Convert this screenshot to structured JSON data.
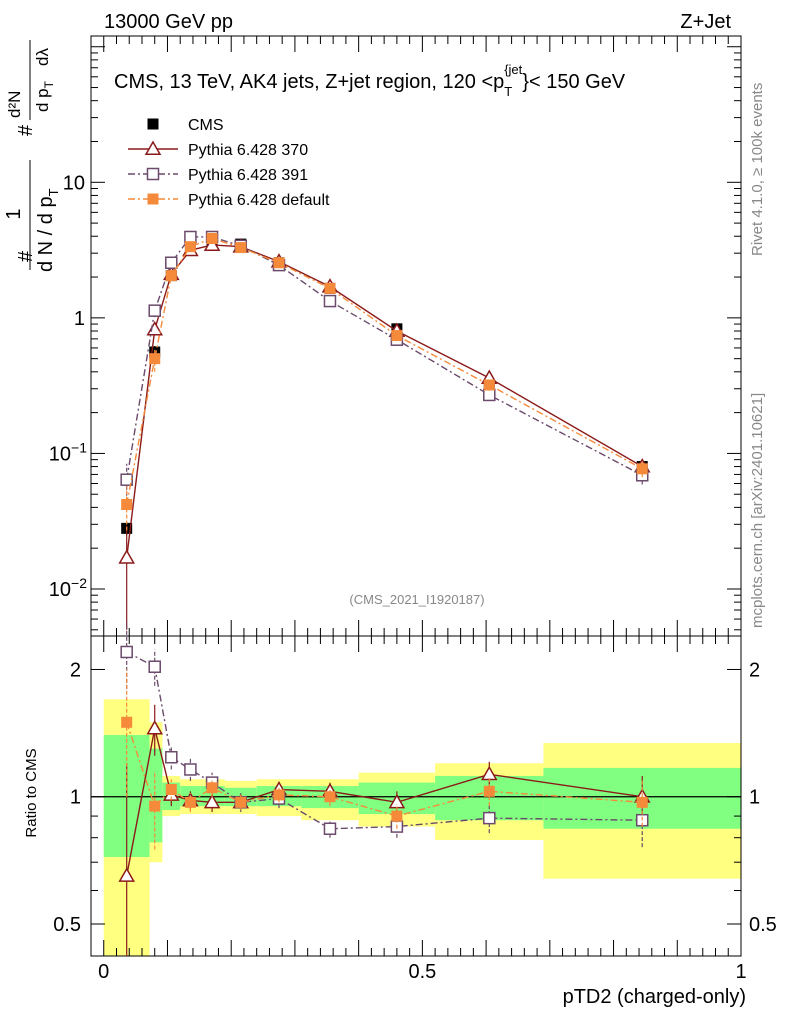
{
  "header": {
    "left": "13000 GeV pp",
    "right": "Z+Jet"
  },
  "side_labels": {
    "rivet": "Rivet 4.1.0, ≥ 100k events",
    "mcplots": "mcplots.cern.ch [arXiv:2401.10621]"
  },
  "chart_data": [
    {
      "type": "scatter",
      "panel": "main",
      "title": "CMS, 13 TeV, AK4 jets, Z+jet region, 120 <p_T^{jet}< 150 GeV",
      "title_main": "CMS, 13 TeV, AK4 jets, Z+jet region, 120 <p",
      "title_sub": "T",
      "title_sup": "{jet",
      "title_close": "}",
      "title_tail": "< 150 GeV",
      "ylabel": "1/N dN/dλ",
      "ylabel_parts": {
        "num": "1",
        "den": "d N / d p",
        "num2": "d²N",
        "den2": "d p",
        "dlam": "dλ",
        "sub": "T",
        "hash": "#"
      },
      "yscale": "log",
      "ylim": [
        0.0045,
        120
      ],
      "xlim": [
        -0.02,
        1.0
      ],
      "yticks": [
        {
          "v": 0.01,
          "base": "10",
          "exp": "−2"
        },
        {
          "v": 0.1,
          "base": "10",
          "exp": "−1"
        },
        {
          "v": 1,
          "base": "1",
          "exp": ""
        },
        {
          "v": 10,
          "base": "10",
          "exp": ""
        }
      ],
      "watermark": "(CMS_2021_I1920187)",
      "legend": [
        {
          "name": "CMS",
          "key": "cms"
        },
        {
          "name": "Pythia 6.428 370",
          "key": "p370"
        },
        {
          "name": "Pythia 6.428 391",
          "key": "p391"
        },
        {
          "name": "Pythia 6.428 default",
          "key": "pdef"
        }
      ],
      "x": [
        0.036,
        0.08,
        0.106,
        0.136,
        0.17,
        0.215,
        0.275,
        0.355,
        0.46,
        0.605,
        0.845
      ],
      "series": [
        {
          "name": "CMS",
          "key": "cms",
          "color": "#000000",
          "marker": "filled-square",
          "values": [
            0.028,
            0.56,
            2.05,
            3.4,
            3.7,
            3.5,
            2.55,
            1.65,
            0.83,
            0.32,
            0.08
          ],
          "errors": [
            0.003,
            0.06,
            0.1,
            0.12,
            0.12,
            0.1,
            0.08,
            0.06,
            0.04,
            0.02,
            0.008
          ]
        },
        {
          "name": "Pythia 6.428 370",
          "key": "p370",
          "color": "#8b1a1a",
          "marker": "open-triangle",
          "line": "solid",
          "values": [
            0.017,
            0.82,
            2.1,
            3.15,
            3.45,
            3.35,
            2.6,
            1.7,
            0.8,
            0.36,
            0.08
          ],
          "errors": [
            0.012,
            0.08,
            0.12,
            0.15,
            0.15,
            0.15,
            0.12,
            0.08,
            0.05,
            0.03,
            0.01
          ]
        },
        {
          "name": "Pythia 6.428 391",
          "key": "p391",
          "color": "#6b4a6b",
          "marker": "open-square",
          "line": "dashdot",
          "values": [
            0.064,
            1.13,
            2.55,
            3.95,
            3.95,
            3.4,
            2.45,
            1.33,
            0.69,
            0.27,
            0.069
          ],
          "errors": [
            0.02,
            0.12,
            0.15,
            0.2,
            0.2,
            0.15,
            0.12,
            0.08,
            0.05,
            0.025,
            0.01
          ]
        },
        {
          "name": "Pythia 6.428 default",
          "key": "pdef",
          "color": "#f58a3a",
          "marker": "filled-square",
          "line": "dashdot",
          "values": [
            0.042,
            0.5,
            2.05,
            3.35,
            3.85,
            3.3,
            2.55,
            1.65,
            0.74,
            0.32,
            0.077
          ],
          "errors": [
            0.015,
            0.1,
            0.12,
            0.15,
            0.15,
            0.12,
            0.1,
            0.08,
            0.05,
            0.03,
            0.01
          ]
        }
      ]
    },
    {
      "type": "scatter",
      "panel": "ratio",
      "ylabel": "Ratio to CMS",
      "xlabel": "pTD2 (charged-only)",
      "yscale": "log",
      "ylim": [
        0.42,
        2.4
      ],
      "xlim": [
        -0.02,
        1.0
      ],
      "yticks": [
        {
          "v": 0.5,
          "label": "0.5"
        },
        {
          "v": 1,
          "label": "1"
        },
        {
          "v": 2,
          "label": "2"
        }
      ],
      "xticks": [
        {
          "v": 0,
          "label": "0"
        },
        {
          "v": 0.5,
          "label": "0.5"
        },
        {
          "v": 1,
          "label": "1"
        }
      ],
      "x": [
        0.036,
        0.08,
        0.106,
        0.136,
        0.17,
        0.215,
        0.275,
        0.355,
        0.46,
        0.605,
        0.845
      ],
      "uncertainty_bands": [
        {
          "x0": 0.0,
          "x1": 0.072,
          "inner": [
            0.72,
            1.4
          ],
          "outer": [
            0.42,
            1.7
          ]
        },
        {
          "x0": 0.072,
          "x1": 0.092,
          "inner": [
            0.78,
            1.3
          ],
          "outer": [
            0.7,
            1.5
          ]
        },
        {
          "x0": 0.092,
          "x1": 0.12,
          "inner": [
            0.93,
            1.08
          ],
          "outer": [
            0.9,
            1.12
          ]
        },
        {
          "x0": 0.12,
          "x1": 0.152,
          "inner": [
            0.95,
            1.06
          ],
          "outer": [
            0.91,
            1.1
          ]
        },
        {
          "x0": 0.152,
          "x1": 0.19,
          "inner": [
            0.95,
            1.06
          ],
          "outer": [
            0.91,
            1.1
          ]
        },
        {
          "x0": 0.19,
          "x1": 0.24,
          "inner": [
            0.95,
            1.05
          ],
          "outer": [
            0.91,
            1.09
          ]
        },
        {
          "x0": 0.24,
          "x1": 0.31,
          "inner": [
            0.95,
            1.06
          ],
          "outer": [
            0.9,
            1.1
          ]
        },
        {
          "x0": 0.31,
          "x1": 0.4,
          "inner": [
            0.94,
            1.06
          ],
          "outer": [
            0.88,
            1.1
          ]
        },
        {
          "x0": 0.4,
          "x1": 0.52,
          "inner": [
            0.91,
            1.08
          ],
          "outer": [
            0.85,
            1.14
          ]
        },
        {
          "x0": 0.52,
          "x1": 0.69,
          "inner": [
            0.88,
            1.12
          ],
          "outer": [
            0.79,
            1.2
          ]
        },
        {
          "x0": 0.69,
          "x1": 1.0,
          "inner": [
            0.84,
            1.17
          ],
          "outer": [
            0.64,
            1.34
          ]
        }
      ],
      "series": [
        {
          "name": "Pythia 6.428 370",
          "key": "p370",
          "color": "#8b1a1a",
          "marker": "open-triangle",
          "line": "solid",
          "values": [
            0.65,
            1.45,
            1.01,
            0.98,
            0.97,
            0.97,
            1.04,
            1.03,
            0.97,
            1.13,
            1.0
          ],
          "errors": [
            0.55,
            0.2,
            0.06,
            0.05,
            0.05,
            0.04,
            0.04,
            0.05,
            0.06,
            0.08,
            0.12
          ]
        },
        {
          "name": "Pythia 6.428 391",
          "key": "p391",
          "color": "#6b4a6b",
          "marker": "open-square",
          "line": "dashdot",
          "values": [
            2.2,
            2.03,
            1.24,
            1.16,
            1.08,
            0.97,
            0.99,
            0.84,
            0.85,
            0.89,
            0.88
          ],
          "errors": [
            0.4,
            0.2,
            0.08,
            0.07,
            0.06,
            0.05,
            0.05,
            0.04,
            0.05,
            0.07,
            0.12
          ]
        },
        {
          "name": "Pythia 6.428 default",
          "key": "pdef",
          "color": "#f58a3a",
          "marker": "filled-square",
          "line": "dashdot",
          "values": [
            1.5,
            0.95,
            1.04,
            0.97,
            1.05,
            0.97,
            1.01,
            1.0,
            0.9,
            1.03,
            0.97
          ],
          "errors": [
            0.5,
            0.2,
            0.06,
            0.05,
            0.05,
            0.04,
            0.04,
            0.05,
            0.06,
            0.08,
            0.12
          ]
        }
      ]
    }
  ]
}
